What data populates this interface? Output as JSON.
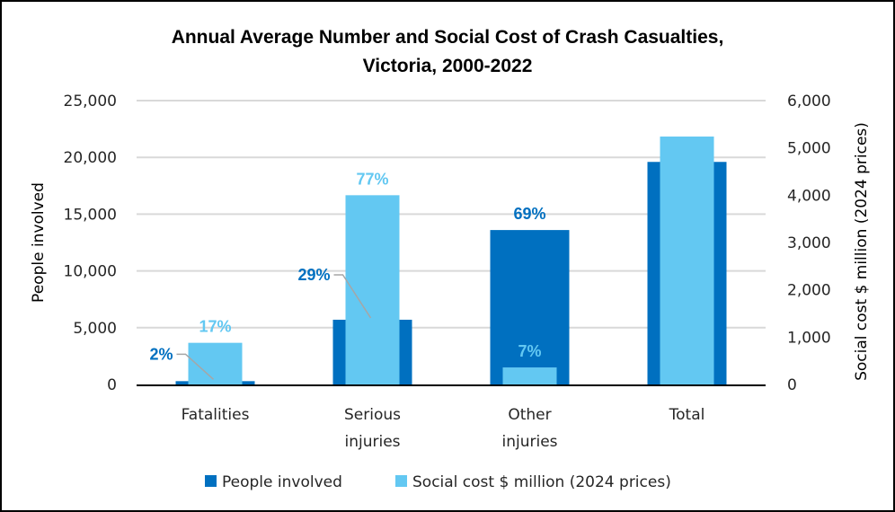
{
  "chart_data": {
    "type": "bar",
    "title": "Annual Average Number and Social Cost of Crash Casualties,",
    "title_line2": "Victoria, 2000-2022",
    "categories": [
      [
        "Fatalities"
      ],
      [
        "Serious",
        "injuries"
      ],
      [
        "Other",
        "injuries"
      ],
      [
        "Total"
      ]
    ],
    "series": [
      {
        "name": "People involved",
        "axis": "left",
        "color": "#0070C0",
        "values": [
          290,
          5700,
          13600,
          19600
        ],
        "data_labels": [
          "2%",
          "29%",
          "69%",
          ""
        ]
      },
      {
        "name": "Social cost $ million (2024 prices)",
        "axis": "right",
        "color": "#63C8F2",
        "values": [
          880,
          4000,
          360,
          5240
        ],
        "data_labels": [
          "17%",
          "77%",
          "7%",
          ""
        ]
      }
    ],
    "ylabel": "People involved",
    "ylim": [
      0,
      25000
    ],
    "yticks": [
      "0",
      "5,000",
      "10,000",
      "15,000",
      "20,000",
      "25,000"
    ],
    "y2label": "Social cost $ million (2024 prices)",
    "y2lim": [
      0,
      6000
    ],
    "y2ticks": [
      "0",
      "1,000",
      "2,000",
      "3,000",
      "4,000",
      "5,000",
      "6,000"
    ],
    "grid": true,
    "legend_position": "bottom",
    "colors": {
      "gridline": "#D9D9D9",
      "axis_line": "#000000",
      "leader_line": "#A6A6A6"
    }
  }
}
